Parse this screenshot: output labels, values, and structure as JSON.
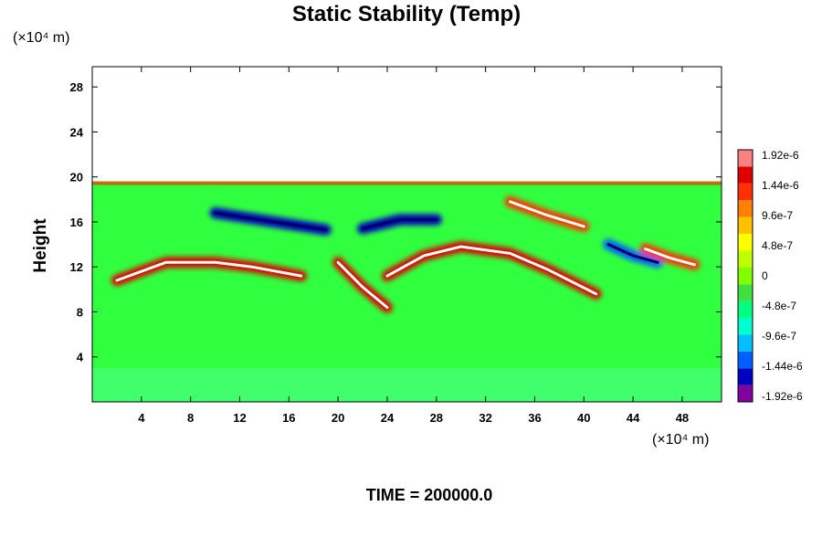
{
  "chart_data": {
    "type": "heatmap",
    "title": "Static Stability (Temp)",
    "ylabel": "Height",
    "x_unit": "(×10⁴ m)",
    "y_unit": "(×10⁴ m)",
    "footer": "TIME = 200000.0",
    "x_ticks": [
      "4",
      "8",
      "12",
      "16",
      "20",
      "24",
      "28",
      "32",
      "36",
      "40",
      "44",
      "48"
    ],
    "y_ticks": [
      "4",
      "8",
      "12",
      "16",
      "20",
      "24",
      "28"
    ],
    "xlim": [
      0,
      51.2
    ],
    "ylim": [
      0,
      29.8
    ],
    "data_top": 19.6,
    "colorbar": {
      "labels": [
        "1.92e-6",
        "1.44e-6",
        "9.6e-7",
        "4.8e-7",
        "0",
        "-4.8e-7",
        "-9.6e-7",
        "-1.44e-6",
        "-1.92e-6"
      ],
      "vmin": -1.92e-06,
      "vmax": 1.92e-06,
      "colors": [
        "#8000a0",
        "#0000c0",
        "#0060ff",
        "#00c0ff",
        "#00ffd0",
        "#00ff80",
        "#40e040",
        "#80ff00",
        "#c0ff00",
        "#ffff00",
        "#ffc000",
        "#ff8000",
        "#ff3000",
        "#e00000",
        "#ff8080"
      ]
    },
    "features": [
      {
        "sign": "negative",
        "points": [
          [
            10,
            16.8
          ],
          [
            13,
            16.3
          ],
          [
            16,
            15.8
          ],
          [
            19,
            15.3
          ]
        ],
        "value": -1.44e-06
      },
      {
        "sign": "positive",
        "points": [
          [
            2,
            10.8
          ],
          [
            6,
            12.4
          ],
          [
            10,
            12.4
          ],
          [
            13,
            12.0
          ],
          [
            17,
            11.2
          ]
        ],
        "value": 1.44e-06
      },
      {
        "sign": "positive",
        "points": [
          [
            20,
            12.4
          ],
          [
            22,
            10.2
          ],
          [
            24,
            8.4
          ]
        ],
        "value": 1.44e-06
      },
      {
        "sign": "positive",
        "points": [
          [
            24,
            11.2
          ],
          [
            27,
            13.0
          ],
          [
            30,
            13.8
          ],
          [
            34,
            13.2
          ],
          [
            37,
            11.8
          ],
          [
            41,
            9.6
          ]
        ],
        "value": 1.44e-06
      },
      {
        "sign": "negative",
        "points": [
          [
            22,
            15.4
          ],
          [
            25,
            16.2
          ],
          [
            28,
            16.2
          ]
        ],
        "value": -1.44e-06
      },
      {
        "sign": "positive",
        "points": [
          [
            34,
            17.8
          ],
          [
            37,
            16.6
          ],
          [
            40,
            15.6
          ]
        ],
        "value": 1.2e-06
      },
      {
        "sign": "negative",
        "points": [
          [
            42,
            14.0
          ],
          [
            44,
            13.0
          ],
          [
            46,
            12.4
          ]
        ],
        "value": -1.2e-06
      },
      {
        "sign": "positive",
        "points": [
          [
            45,
            13.6
          ],
          [
            47,
            12.8
          ],
          [
            49,
            12.2
          ]
        ],
        "value": 1.2e-06
      }
    ]
  }
}
